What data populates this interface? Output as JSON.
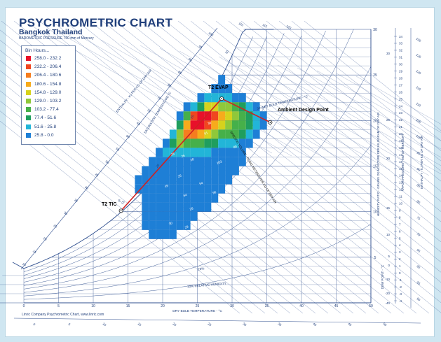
{
  "title": "PSYCHROMETRIC CHART",
  "subtitle": "Bangkok Thailand",
  "pressure_note": "BAROMETRIC PRESSURE 760 mm of Mercury",
  "footer": "Linric Company Psychrometric Chart, www.linric.com",
  "colors": {
    "grid_line": "#2f4f8f",
    "label": "#1f3e7a",
    "process_line": "#d02020"
  },
  "legend": {
    "heading": "Bin Hours...",
    "items": [
      {
        "label": "258.0 - 232.2",
        "color": "#e8102a"
      },
      {
        "label": "232.2 - 206.4",
        "color": "#f0461f"
      },
      {
        "label": "206.4 - 180.6",
        "color": "#f57d1f"
      },
      {
        "label": "180.6 - 154.8",
        "color": "#f7ab1c"
      },
      {
        "label": "154.8 - 129.0",
        "color": "#d6d21d"
      },
      {
        "label": "129.0 - 103.2",
        "color": "#8fc83a"
      },
      {
        "label": "103.2 - 77.4",
        "color": "#46b04a"
      },
      {
        "label": "77.4 - 51.6",
        "color": "#1f9e5e"
      },
      {
        "label": "51.6 - 25.8",
        "color": "#22b5d8"
      },
      {
        "label": "25.8 - 0.0",
        "color": "#1e7fd6"
      }
    ]
  },
  "annotations": {
    "evap": "T2 EVAP",
    "design": "Ambient Design Point",
    "tic": "T2 TIC",
    "tic_sup": "5"
  },
  "chart_data": {
    "type": "heatmap",
    "title": "PSYCHROMETRIC CHART",
    "subtitle": "Bangkok Thailand",
    "xlabel": "DRY BULB TEMPERATURE - °C",
    "ylabel": "HUMIDITY RATIO - GRAINS OF MOISTURE PER KILOGRAM OF DRY AIR",
    "ylabel_right_1": "VAPOR PRESSURE - MM OF MERCURY",
    "ylabel_right_2": "ENTHALPY - KJ PER KG OF DRY AIR",
    "curve_labels": [
      "SATURATION TEMPERATURE °C",
      "ENTHALPY - KJ PER KG OF DRY AIR",
      "30 WET BULB TEMPERATURE - °C",
      "20%",
      "10% RELATIVE HUMIDITY",
      "DEW POINT - °C",
      "SPECIFIC VOLUME - CUBIC METERS PER KG OF DRY AIR"
    ],
    "x_ticks": [
      0,
      5,
      10,
      15,
      20,
      25,
      30,
      35,
      40,
      45,
      50
    ],
    "xlim": [
      0,
      50
    ],
    "y_ticks": [
      5,
      10,
      15,
      20,
      25,
      30
    ],
    "ylim": [
      0,
      30
    ],
    "vapor_pressure_ticks": [
      34,
      33,
      32,
      31,
      30,
      29,
      28,
      27,
      26,
      25,
      24,
      23,
      22,
      21,
      20,
      19,
      18,
      17,
      16,
      15,
      14,
      13,
      12,
      11,
      10,
      9,
      8,
      7,
      6,
      5,
      4,
      3,
      2,
      1,
      0,
      -1,
      -2,
      -3,
      -4
    ],
    "dew_point_ticks": [
      30,
      25,
      20,
      15,
      10,
      5,
      0,
      -10,
      -20,
      -40
    ],
    "enthalpy_ticks_right": [
      130,
      125,
      120,
      115,
      110,
      105,
      100,
      95,
      90,
      85,
      80,
      75,
      70,
      65,
      60,
      55,
      50
    ],
    "enthalpy_ticks_top": [
      110,
      115,
      120
    ],
    "enthalpy_ticks_left": [
      100,
      95,
      90,
      85,
      80,
      75,
      70,
      65,
      60,
      55,
      50,
      45,
      40,
      35,
      30,
      25,
      20,
      15,
      10
    ],
    "enthalpy_ticks_bottom": [
      0,
      5,
      10,
      15,
      20,
      25,
      30,
      35,
      40,
      45,
      50
    ],
    "saturation_ticks": [
      30,
      25,
      20,
      15
    ],
    "cell_labels": [
      "61",
      "26",
      "28",
      "25",
      "88",
      "49",
      "103",
      "64",
      "54",
      "28",
      "96",
      "84",
      "30",
      "29",
      "28",
      "30"
    ],
    "process_points": [
      {
        "name": "T2 TIC",
        "x": 14,
        "y": 10.1
      },
      {
        "name": "T2 EVAP",
        "x": 28.5,
        "y": 22.4
      },
      {
        "name": "Ambient Design Point",
        "x": 35.5,
        "y": 19.8
      }
    ],
    "bins": [
      {
        "x": 28.5,
        "y": 24.5,
        "v": 10
      },
      {
        "x": 27.5,
        "y": 23.5,
        "v": 12
      },
      {
        "x": 28.5,
        "y": 23.5,
        "v": 15
      },
      {
        "x": 29.5,
        "y": 23.5,
        "v": 8
      },
      {
        "x": 25.5,
        "y": 22.5,
        "v": 20
      },
      {
        "x": 26.5,
        "y": 22.5,
        "v": 30
      },
      {
        "x": 27.5,
        "y": 22.5,
        "v": 40
      },
      {
        "x": 28.5,
        "y": 22.5,
        "v": 36
      },
      {
        "x": 29.5,
        "y": 22.5,
        "v": 30
      },
      {
        "x": 30.5,
        "y": 22.5,
        "v": 20
      },
      {
        "x": 31.5,
        "y": 22.5,
        "v": 15
      },
      {
        "x": 23.5,
        "y": 21.5,
        "v": 15
      },
      {
        "x": 24.5,
        "y": 21.5,
        "v": 40
      },
      {
        "x": 25.5,
        "y": 21.5,
        "v": 70
      },
      {
        "x": 26.5,
        "y": 21.5,
        "v": 150
      },
      {
        "x": 27.5,
        "y": 21.5,
        "v": 140
      },
      {
        "x": 28.5,
        "y": 21.5,
        "v": 120
      },
      {
        "x": 29.5,
        "y": 21.5,
        "v": 110
      },
      {
        "x": 30.5,
        "y": 21.5,
        "v": 95
      },
      {
        "x": 31.5,
        "y": 21.5,
        "v": 60
      },
      {
        "x": 32.5,
        "y": 21.5,
        "v": 35
      },
      {
        "x": 33.5,
        "y": 21.5,
        "v": 20
      },
      {
        "x": 22.5,
        "y": 20.5,
        "v": 25
      },
      {
        "x": 23.5,
        "y": 20.5,
        "v": 90
      },
      {
        "x": 24.5,
        "y": 20.5,
        "v": 215
      },
      {
        "x": 25.5,
        "y": 20.5,
        "v": 245
      },
      {
        "x": 26.5,
        "y": 20.5,
        "v": 258
      },
      {
        "x": 27.5,
        "y": 20.5,
        "v": 225
      },
      {
        "x": 28.5,
        "y": 20.5,
        "v": 170
      },
      {
        "x": 29.5,
        "y": 20.5,
        "v": 140
      },
      {
        "x": 30.5,
        "y": 20.5,
        "v": 120
      },
      {
        "x": 31.5,
        "y": 20.5,
        "v": 95
      },
      {
        "x": 32.5,
        "y": 20.5,
        "v": 60
      },
      {
        "x": 33.5,
        "y": 20.5,
        "v": 35
      },
      {
        "x": 34.5,
        "y": 20.5,
        "v": 20
      },
      {
        "x": 22.5,
        "y": 19.5,
        "v": 60
      },
      {
        "x": 23.5,
        "y": 19.5,
        "v": 180
      },
      {
        "x": 24.5,
        "y": 19.5,
        "v": 240
      },
      {
        "x": 25.5,
        "y": 19.5,
        "v": 250
      },
      {
        "x": 26.5,
        "y": 19.5,
        "v": 210
      },
      {
        "x": 27.5,
        "y": 19.5,
        "v": 160
      },
      {
        "x": 28.5,
        "y": 19.5,
        "v": 130
      },
      {
        "x": 29.5,
        "y": 19.5,
        "v": 115
      },
      {
        "x": 30.5,
        "y": 19.5,
        "v": 100
      },
      {
        "x": 31.5,
        "y": 19.5,
        "v": 90
      },
      {
        "x": 32.5,
        "y": 19.5,
        "v": 60
      },
      {
        "x": 33.5,
        "y": 19.5,
        "v": 30
      },
      {
        "x": 34.5,
        "y": 19.5,
        "v": 20
      },
      {
        "x": 21.5,
        "y": 18.5,
        "v": 30
      },
      {
        "x": 22.5,
        "y": 18.5,
        "v": 120
      },
      {
        "x": 23.5,
        "y": 18.5,
        "v": 200
      },
      {
        "x": 24.5,
        "y": 18.5,
        "v": 195
      },
      {
        "x": 25.5,
        "y": 18.5,
        "v": 165
      },
      {
        "x": 26.5,
        "y": 18.5,
        "v": 135
      },
      {
        "x": 27.5,
        "y": 18.5,
        "v": 115
      },
      {
        "x": 28.5,
        "y": 18.5,
        "v": 100
      },
      {
        "x": 29.5,
        "y": 18.5,
        "v": 90
      },
      {
        "x": 30.5,
        "y": 18.5,
        "v": 80
      },
      {
        "x": 31.5,
        "y": 18.5,
        "v": 60
      },
      {
        "x": 32.5,
        "y": 18.5,
        "v": 40
      },
      {
        "x": 33.5,
        "y": 18.5,
        "v": 20
      },
      {
        "x": 20.5,
        "y": 17.5,
        "v": 20
      },
      {
        "x": 21.5,
        "y": 17.5,
        "v": 60
      },
      {
        "x": 22.5,
        "y": 17.5,
        "v": 110
      },
      {
        "x": 23.5,
        "y": 17.5,
        "v": 100
      },
      {
        "x": 24.5,
        "y": 17.5,
        "v": 85
      },
      {
        "x": 25.5,
        "y": 17.5,
        "v": 80
      },
      {
        "x": 26.5,
        "y": 17.5,
        "v": 70
      },
      {
        "x": 27.5,
        "y": 17.5,
        "v": 60
      },
      {
        "x": 28.5,
        "y": 17.5,
        "v": 50
      },
      {
        "x": 29.5,
        "y": 17.5,
        "v": 40
      },
      {
        "x": 30.5,
        "y": 17.5,
        "v": 30
      },
      {
        "x": 31.5,
        "y": 17.5,
        "v": 20
      },
      {
        "x": 32.5,
        "y": 17.5,
        "v": 10
      },
      {
        "x": 19.5,
        "y": 16.5,
        "v": 15
      },
      {
        "x": 20.5,
        "y": 16.5,
        "v": 35
      },
      {
        "x": 21.5,
        "y": 16.5,
        "v": 50
      },
      {
        "x": 22.5,
        "y": 16.5,
        "v": 45
      },
      {
        "x": 23.5,
        "y": 16.5,
        "v": 40
      },
      {
        "x": 24.5,
        "y": 16.5,
        "v": 35
      },
      {
        "x": 25.5,
        "y": 16.5,
        "v": 30
      },
      {
        "x": 26.5,
        "y": 16.5,
        "v": 30
      },
      {
        "x": 27.5,
        "y": 16.5,
        "v": 25
      },
      {
        "x": 28.5,
        "y": 16.5,
        "v": 20
      },
      {
        "x": 29.5,
        "y": 16.5,
        "v": 15
      },
      {
        "x": 30.5,
        "y": 16.5,
        "v": 10
      },
      {
        "x": 31.5,
        "y": 16.5,
        "v": 8
      },
      {
        "x": 18.5,
        "y": 15.5,
        "v": 10
      },
      {
        "x": 19.5,
        "y": 15.5,
        "v": 20
      },
      {
        "x": 20.5,
        "y": 15.5,
        "v": 25
      },
      {
        "x": 21.5,
        "y": 15.5,
        "v": 25
      },
      {
        "x": 22.5,
        "y": 15.5,
        "v": 22
      },
      {
        "x": 23.5,
        "y": 15.5,
        "v": 20
      },
      {
        "x": 24.5,
        "y": 15.5,
        "v": 18
      },
      {
        "x": 25.5,
        "y": 15.5,
        "v": 15
      },
      {
        "x": 26.5,
        "y": 15.5,
        "v": 15
      },
      {
        "x": 27.5,
        "y": 15.5,
        "v": 12
      },
      {
        "x": 28.5,
        "y": 15.5,
        "v": 10
      },
      {
        "x": 29.5,
        "y": 15.5,
        "v": 8
      },
      {
        "x": 30.5,
        "y": 15.5,
        "v": 6
      },
      {
        "x": 31.5,
        "y": 15.5,
        "v": 5
      },
      {
        "x": 17.5,
        "y": 14.5,
        "v": 8
      },
      {
        "x": 18.5,
        "y": 14.5,
        "v": 15
      },
      {
        "x": 19.5,
        "y": 14.5,
        "v": 18
      },
      {
        "x": 20.5,
        "y": 14.5,
        "v": 18
      },
      {
        "x": 21.5,
        "y": 14.5,
        "v": 16
      },
      {
        "x": 22.5,
        "y": 14.5,
        "v": 15
      },
      {
        "x": 23.5,
        "y": 14.5,
        "v": 14
      },
      {
        "x": 24.5,
        "y": 14.5,
        "v": 12
      },
      {
        "x": 25.5,
        "y": 14.5,
        "v": 10
      },
      {
        "x": 26.5,
        "y": 14.5,
        "v": 8
      },
      {
        "x": 27.5,
        "y": 14.5,
        "v": 7
      },
      {
        "x": 28.5,
        "y": 14.5,
        "v": 6
      },
      {
        "x": 29.5,
        "y": 14.5,
        "v": 5
      },
      {
        "x": 30.5,
        "y": 14.5,
        "v": 4
      },
      {
        "x": 16.5,
        "y": 13.5,
        "v": 5
      },
      {
        "x": 17.5,
        "y": 13.5,
        "v": 10
      },
      {
        "x": 18.5,
        "y": 13.5,
        "v": 12
      },
      {
        "x": 19.5,
        "y": 13.5,
        "v": 12
      },
      {
        "x": 20.5,
        "y": 13.5,
        "v": 11
      },
      {
        "x": 21.5,
        "y": 13.5,
        "v": 10
      },
      {
        "x": 22.5,
        "y": 13.5,
        "v": 9
      },
      {
        "x": 23.5,
        "y": 13.5,
        "v": 8
      },
      {
        "x": 24.5,
        "y": 13.5,
        "v": 7
      },
      {
        "x": 25.5,
        "y": 13.5,
        "v": 6
      },
      {
        "x": 26.5,
        "y": 13.5,
        "v": 5
      },
      {
        "x": 27.5,
        "y": 13.5,
        "v": 4
      },
      {
        "x": 28.5,
        "y": 13.5,
        "v": 4
      },
      {
        "x": 29.5,
        "y": 13.5,
        "v": 3
      },
      {
        "x": 16.5,
        "y": 12.5,
        "v": 4
      },
      {
        "x": 17.5,
        "y": 12.5,
        "v": 7
      },
      {
        "x": 18.5,
        "y": 12.5,
        "v": 8
      },
      {
        "x": 19.5,
        "y": 12.5,
        "v": 8
      },
      {
        "x": 20.5,
        "y": 12.5,
        "v": 7
      },
      {
        "x": 21.5,
        "y": 12.5,
        "v": 6
      },
      {
        "x": 22.5,
        "y": 12.5,
        "v": 6
      },
      {
        "x": 23.5,
        "y": 12.5,
        "v": 5
      },
      {
        "x": 24.5,
        "y": 12.5,
        "v": 4
      },
      {
        "x": 25.5,
        "y": 12.5,
        "v": 4
      },
      {
        "x": 26.5,
        "y": 12.5,
        "v": 3
      },
      {
        "x": 27.5,
        "y": 12.5,
        "v": 3
      },
      {
        "x": 28.5,
        "y": 12.5,
        "v": 2
      },
      {
        "x": 17.5,
        "y": 11.5,
        "v": 4
      },
      {
        "x": 18.5,
        "y": 11.5,
        "v": 5
      },
      {
        "x": 19.5,
        "y": 11.5,
        "v": 5
      },
      {
        "x": 20.5,
        "y": 11.5,
        "v": 4
      },
      {
        "x": 21.5,
        "y": 11.5,
        "v": 4
      },
      {
        "x": 22.5,
        "y": 11.5,
        "v": 3
      },
      {
        "x": 23.5,
        "y": 11.5,
        "v": 3
      },
      {
        "x": 24.5,
        "y": 11.5,
        "v": 3
      },
      {
        "x": 25.5,
        "y": 11.5,
        "v": 2
      },
      {
        "x": 26.5,
        "y": 11.5,
        "v": 2
      },
      {
        "x": 27.5,
        "y": 11.5,
        "v": 2
      },
      {
        "x": 17.5,
        "y": 10.5,
        "v": 3
      },
      {
        "x": 18.5,
        "y": 10.5,
        "v": 3
      },
      {
        "x": 19.5,
        "y": 10.5,
        "v": 3
      },
      {
        "x": 20.5,
        "y": 10.5,
        "v": 3
      },
      {
        "x": 21.5,
        "y": 10.5,
        "v": 2
      },
      {
        "x": 22.5,
        "y": 10.5,
        "v": 2
      },
      {
        "x": 23.5,
        "y": 10.5,
        "v": 2
      },
      {
        "x": 24.5,
        "y": 10.5,
        "v": 2
      },
      {
        "x": 25.5,
        "y": 10.5,
        "v": 2
      },
      {
        "x": 26.5,
        "y": 10.5,
        "v": 1
      },
      {
        "x": 17.5,
        "y": 9.5,
        "v": 2
      },
      {
        "x": 18.5,
        "y": 9.5,
        "v": 2
      },
      {
        "x": 19.5,
        "y": 9.5,
        "v": 2
      },
      {
        "x": 20.5,
        "y": 9.5,
        "v": 2
      },
      {
        "x": 21.5,
        "y": 9.5,
        "v": 2
      },
      {
        "x": 22.5,
        "y": 9.5,
        "v": 1
      },
      {
        "x": 23.5,
        "y": 9.5,
        "v": 1
      },
      {
        "x": 24.5,
        "y": 9.5,
        "v": 1
      },
      {
        "x": 17.5,
        "y": 8.5,
        "v": 1
      },
      {
        "x": 18.5,
        "y": 8.5,
        "v": 2
      },
      {
        "x": 19.5,
        "y": 8.5,
        "v": 1
      },
      {
        "x": 20.5,
        "y": 8.5,
        "v": 1
      },
      {
        "x": 21.5,
        "y": 8.5,
        "v": 1
      },
      {
        "x": 22.5,
        "y": 8.5,
        "v": 1
      },
      {
        "x": 23.5,
        "y": 8.5,
        "v": 1
      },
      {
        "x": 18.5,
        "y": 7.5,
        "v": 1
      },
      {
        "x": 19.5,
        "y": 7.5,
        "v": 1
      },
      {
        "x": 20.5,
        "y": 7.5,
        "v": 1
      },
      {
        "x": 21.5,
        "y": 7.5,
        "v": 1
      }
    ]
  }
}
